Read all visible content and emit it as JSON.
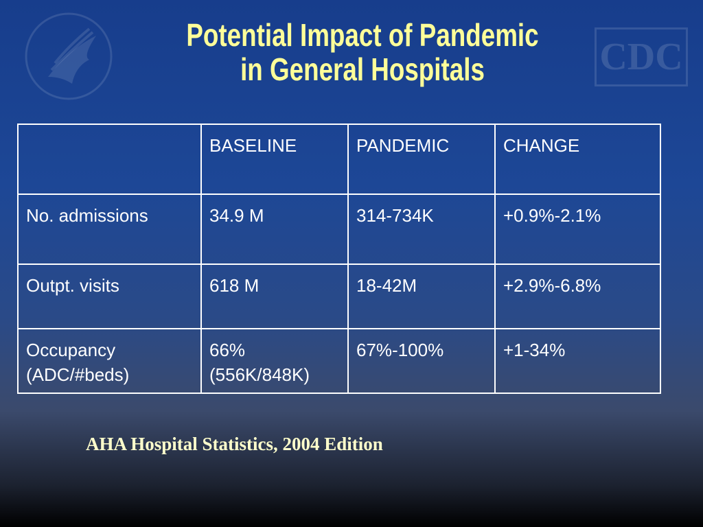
{
  "header": {
    "title_lines": [
      "Potential Impact of Pandemic",
      "in General Hospitals"
    ],
    "logo_text": "CDC"
  },
  "table": {
    "header": [
      "",
      "BASELINE",
      "PANDEMIC",
      "CHANGE"
    ],
    "rows": [
      [
        "No. admissions",
        "34.9 M",
        "314-734K",
        "+0.9%-2.1%"
      ],
      [
        "Outpt. visits",
        "618 M",
        "18-42M",
        "+2.9%-6.8%"
      ],
      [
        [
          "Occupancy",
          "(ADC/#beds)"
        ],
        [
          "66%",
          "(556K/848K)"
        ],
        "67%-100%",
        "+1-34%"
      ]
    ]
  },
  "footer": {
    "source": "AHA Hospital Statistics, 2004 Edition"
  }
}
